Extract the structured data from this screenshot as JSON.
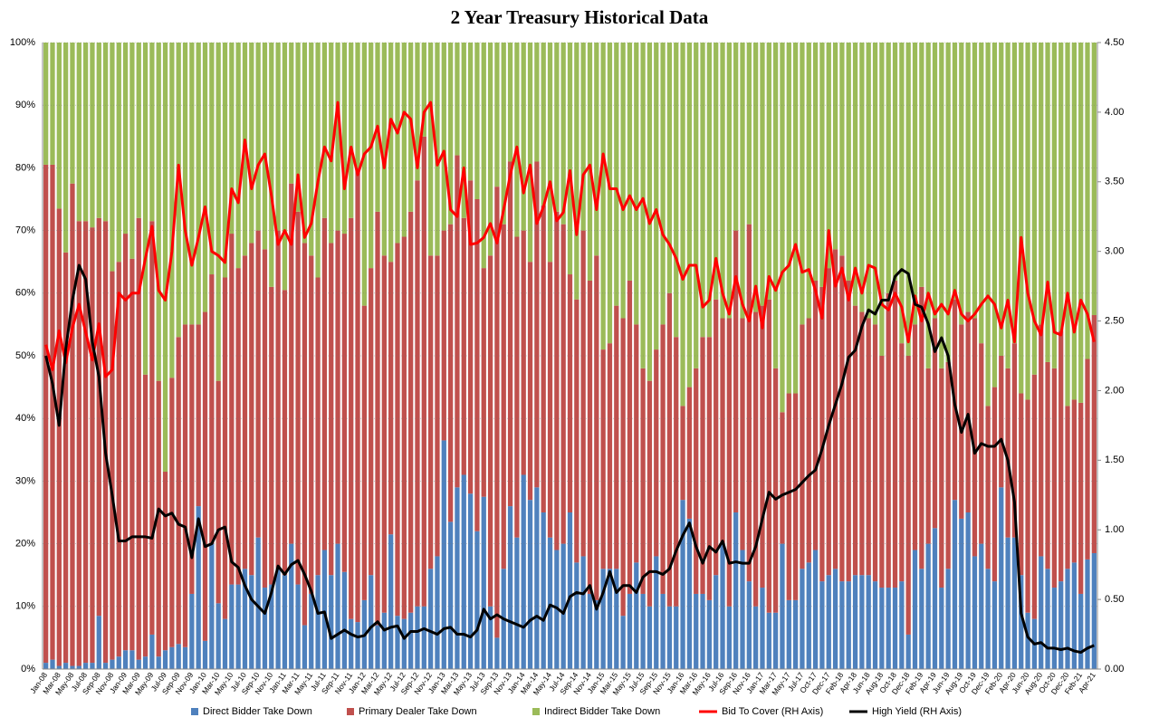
{
  "chart_data": {
    "type": "bar",
    "stacked": true,
    "title": "2 Year Treasury  Historical Data",
    "categories": [
      "Jan-08",
      null,
      "Mar-08",
      null,
      "May-08",
      null,
      "Jul-08",
      null,
      "Sep-08",
      null,
      "Nov-08",
      null,
      "Jan-09",
      null,
      "Mar-09",
      null,
      "May-09",
      null,
      "Jul-09",
      null,
      "Sep-09",
      null,
      "Nov-09",
      null,
      "Jan-10",
      null,
      "Mar-10",
      null,
      "May-10",
      null,
      "Jul-10",
      null,
      "Sep-10",
      null,
      "Nov-10",
      null,
      "Jan-11",
      null,
      "Mar-11",
      null,
      "May-11",
      null,
      "Jul-11",
      null,
      "Sep-11",
      null,
      "Nov-11",
      null,
      "Jan-12",
      null,
      "Mar-12",
      null,
      "May-12",
      null,
      "Jul-12",
      null,
      "Sep-12",
      null,
      "Nov-12",
      null,
      "Jan-13",
      null,
      "Mar-13",
      null,
      "May-13",
      null,
      "Jul-13",
      null,
      "Sep-13",
      null,
      "Nov-13",
      null,
      "Jan-14",
      null,
      "Mar-14",
      null,
      "May-14",
      null,
      "Jul-14",
      null,
      "Sep-14",
      null,
      "Nov-14",
      null,
      "Jan-15",
      null,
      "Mar-15",
      null,
      "May-15",
      null,
      "Jul-15",
      null,
      "Sep-15",
      null,
      "Nov-15",
      null,
      "Jan-16",
      null,
      "Mar-16",
      null,
      "May-16",
      null,
      "Jul-16",
      null,
      "Sep-16",
      null,
      "Nov-16",
      null,
      "Jan-17",
      null,
      "Mar-17",
      null,
      "May-17",
      null,
      "Jul-17",
      null,
      "Oct-17",
      null,
      "Dec-17",
      null,
      "Feb-18",
      null,
      "Apr-18",
      null,
      "Jun-18",
      null,
      "Aug-18",
      null,
      "Oct-18",
      null,
      "Dec-18",
      null,
      "Feb-19",
      null,
      "Apr-19",
      null,
      "Jun-19",
      null,
      "Aug-19",
      null,
      "Oct-19",
      null,
      "Dec-19",
      null,
      "Feb-20",
      null,
      "Apr-20",
      null,
      "Jun-20",
      null,
      "Aug-20",
      null,
      "Oct-20",
      null,
      "Dec-20",
      null,
      "Feb-21",
      null,
      "Apr-21"
    ],
    "ylim": [
      0,
      100
    ],
    "yticks": [
      {
        "value": 0,
        "label": "0%"
      },
      {
        "value": 10,
        "label": "10%"
      },
      {
        "value": 20,
        "label": "20%"
      },
      {
        "value": 30,
        "label": "30%"
      },
      {
        "value": 40,
        "label": "40%"
      },
      {
        "value": 50,
        "label": "50%"
      },
      {
        "value": 60,
        "label": "60%"
      },
      {
        "value": 70,
        "label": "70%"
      },
      {
        "value": 80,
        "label": "80%"
      },
      {
        "value": 90,
        "label": "90%"
      },
      {
        "value": 100,
        "label": "100%"
      }
    ],
    "y2lim": [
      0,
      4.5
    ],
    "y2ticks": [
      {
        "value": 0,
        "label": "0.00"
      },
      {
        "value": 0.5,
        "label": "0.50"
      },
      {
        "value": 1,
        "label": "1.00"
      },
      {
        "value": 1.5,
        "label": "1.50"
      },
      {
        "value": 2,
        "label": "2.00"
      },
      {
        "value": 2.5,
        "label": "2.50"
      },
      {
        "value": 3,
        "label": "3.00"
      },
      {
        "value": 3.5,
        "label": "3.50"
      },
      {
        "value": 4,
        "label": "4.00"
      },
      {
        "value": 4.5,
        "label": "4.50"
      }
    ],
    "grid": true,
    "legend": "bottom",
    "series": [
      {
        "name": "Direct Bidder Take Down",
        "color": "#4f81bd",
        "values": [
          1,
          1.5,
          0.5,
          1,
          0.5,
          0.5,
          1,
          1,
          8.5,
          1,
          1.5,
          2,
          3,
          3,
          1.5,
          2,
          5.5,
          2,
          3,
          3.5,
          4,
          3.5,
          12,
          26,
          4.5,
          20,
          10.5,
          8,
          13.5,
          13.5,
          16,
          15,
          21,
          13,
          13.5,
          16,
          15,
          20,
          13.5,
          7,
          12,
          15,
          19,
          15,
          20,
          15.5,
          8,
          7.5,
          11,
          15,
          7,
          9,
          21.5,
          8.5,
          8,
          9,
          10,
          10,
          16,
          18,
          36.5,
          23.5,
          29,
          31,
          28,
          22,
          27.5,
          10,
          5,
          16,
          26,
          21,
          31,
          27,
          29,
          25,
          21,
          19,
          20,
          25,
          17,
          18,
          12,
          11,
          16,
          16,
          16,
          8.5,
          12,
          17,
          12,
          10,
          18,
          12,
          10,
          10,
          27,
          24,
          12,
          12,
          11,
          15,
          20,
          10,
          25,
          19,
          14,
          10,
          13,
          9,
          9,
          20,
          11,
          11,
          16,
          17,
          19,
          14,
          15,
          16,
          14,
          14,
          15,
          15,
          15,
          14,
          13,
          13,
          13,
          14,
          5.5,
          19,
          16,
          20,
          22.5,
          13,
          16,
          27,
          24,
          25,
          18,
          20,
          16,
          14,
          29,
          21,
          21,
          15,
          9,
          8,
          18,
          16,
          13,
          14,
          16,
          17,
          12,
          17.5,
          18.5
        ]
      },
      {
        "name": "Primary Dealer Take Down",
        "color": "#c0504d",
        "values": [
          79.5,
          79,
          73,
          65.5,
          77,
          71,
          70.5,
          69.5,
          63.5,
          70.5,
          62,
          63,
          66.5,
          62.5,
          70.5,
          45,
          66,
          44,
          28.5,
          43,
          49,
          51.5,
          43,
          29,
          52.5,
          43,
          35.5,
          54.5,
          56,
          50.5,
          50,
          53,
          49,
          54,
          47.5,
          54,
          45.5,
          57.5,
          59.5,
          61,
          54,
          47.5,
          53,
          53,
          50,
          54,
          64,
          72.5,
          47,
          49,
          66,
          57,
          43.5,
          59.5,
          61,
          64,
          68,
          75,
          50,
          48,
          33.5,
          47.5,
          53,
          41,
          50,
          53,
          36.5,
          56,
          72,
          55,
          55,
          48,
          39,
          38,
          52,
          49,
          44,
          54,
          51,
          38,
          42,
          52,
          50,
          55,
          35,
          36,
          42,
          47.5,
          50,
          38,
          36,
          36,
          33,
          43,
          50,
          43,
          15,
          21,
          36,
          41,
          42,
          44,
          36,
          46,
          45,
          37,
          57,
          47,
          45,
          50,
          39,
          21,
          33,
          33,
          39,
          39,
          43,
          47,
          49,
          51,
          52,
          48,
          43,
          42,
          41,
          41,
          37,
          47,
          49,
          38,
          44.5,
          36,
          45,
          28,
          33.5,
          35,
          33,
          32,
          31,
          32,
          38,
          32,
          26,
          31,
          21,
          27,
          31,
          29,
          34,
          39,
          37,
          33,
          35,
          40,
          26,
          26,
          30.5,
          32,
          38
        ]
      },
      {
        "name": "Indirect Bidder Take Down",
        "color": "#9bbb59",
        "values": [
          19.5,
          19.5,
          26.5,
          33.5,
          22.5,
          28.5,
          28.5,
          29.5,
          28,
          28.5,
          36.5,
          35,
          30.5,
          34.5,
          28,
          53,
          28.5,
          54,
          68.5,
          53.5,
          47,
          45,
          45,
          45,
          43,
          37,
          54,
          37.5,
          30.5,
          36,
          34,
          32,
          30,
          33,
          39,
          30,
          39.5,
          22.5,
          27,
          32,
          34,
          37.5,
          28,
          32,
          30,
          30.5,
          28,
          20,
          42,
          36,
          27,
          34,
          35,
          32,
          31,
          27,
          22,
          15,
          34,
          34,
          30,
          29,
          18,
          28,
          22,
          25,
          36,
          34,
          23,
          29,
          19,
          31,
          30,
          35,
          19,
          26,
          35,
          27,
          29,
          37,
          41,
          30,
          38,
          34,
          49,
          48,
          42,
          44,
          38,
          45,
          52,
          54,
          49,
          45,
          40,
          47,
          58,
          55,
          52,
          47,
          47,
          41,
          44,
          44,
          30,
          44,
          29,
          43,
          42,
          41,
          52,
          59,
          56,
          56,
          45,
          44,
          38,
          39,
          36,
          33,
          34,
          38,
          42,
          43,
          44,
          45,
          50,
          40,
          38,
          48,
          50,
          45,
          39,
          52,
          44,
          52,
          51,
          41,
          45,
          43,
          44,
          48,
          58,
          55,
          50,
          52,
          48,
          56,
          57,
          53,
          45,
          51,
          52,
          46,
          58,
          57,
          57.5,
          50.5,
          43.5
        ]
      },
      {
        "name": "Bid To Cover (RH Axis)",
        "color": "#ff0000",
        "type": "line",
        "axis": "y2",
        "values": [
          2.33,
          2.15,
          2.43,
          2.2,
          2.45,
          2.62,
          2.42,
          2.22,
          2.48,
          2.1,
          2.15,
          2.7,
          2.65,
          2.7,
          2.7,
          2.95,
          3.18,
          2.72,
          2.65,
          3.0,
          3.62,
          3.15,
          2.9,
          3.1,
          3.32,
          3.0,
          2.97,
          2.92,
          3.45,
          3.35,
          3.8,
          3.45,
          3.62,
          3.7,
          3.4,
          3.05,
          3.15,
          3.05,
          3.55,
          3.1,
          3.2,
          3.5,
          3.75,
          3.65,
          4.07,
          3.45,
          3.75,
          3.55,
          3.7,
          3.75,
          3.9,
          3.6,
          3.95,
          3.85,
          4.0,
          3.95,
          3.6,
          4.0,
          4.07,
          3.62,
          3.72,
          3.3,
          3.25,
          3.6,
          3.05,
          3.06,
          3.1,
          3.2,
          3.06,
          3.3,
          3.55,
          3.75,
          3.42,
          3.62,
          3.2,
          3.32,
          3.5,
          3.22,
          3.28,
          3.58,
          3.12,
          3.55,
          3.62,
          3.3,
          3.7,
          3.45,
          3.45,
          3.3,
          3.4,
          3.3,
          3.38,
          3.2,
          3.3,
          3.12,
          3.05,
          2.95,
          2.8,
          2.9,
          2.9,
          2.6,
          2.65,
          2.95,
          2.7,
          2.55,
          2.82,
          2.62,
          2.5,
          2.75,
          2.45,
          2.82,
          2.72,
          2.85,
          2.9,
          3.05,
          2.85,
          2.87,
          2.72,
          2.52,
          3.15,
          2.75,
          2.88,
          2.65,
          2.88,
          2.7,
          2.9,
          2.88,
          2.62,
          2.58,
          2.7,
          2.6,
          2.35,
          2.68,
          2.5,
          2.7,
          2.55,
          2.62,
          2.55,
          2.72,
          2.55,
          2.5,
          2.55,
          2.62,
          2.68,
          2.62,
          2.45,
          2.65,
          2.35,
          3.1,
          2.7,
          2.5,
          2.4,
          2.78,
          2.42,
          2.4,
          2.7,
          2.42,
          2.65,
          2.55,
          2.35
        ]
      },
      {
        "name": "High Yield (RH Axis)",
        "color": "#000000",
        "type": "line",
        "axis": "y2",
        "values": [
          2.25,
          2.05,
          1.75,
          2.3,
          2.65,
          2.9,
          2.8,
          2.35,
          2.1,
          1.55,
          1.25,
          0.92,
          0.92,
          0.95,
          0.95,
          0.95,
          0.94,
          1.15,
          1.1,
          1.12,
          1.04,
          1.02,
          0.8,
          1.08,
          0.88,
          0.9,
          1.0,
          1.02,
          0.77,
          0.73,
          0.6,
          0.5,
          0.45,
          0.4,
          0.55,
          0.74,
          0.68,
          0.75,
          0.78,
          0.68,
          0.56,
          0.4,
          0.41,
          0.22,
          0.25,
          0.28,
          0.25,
          0.23,
          0.24,
          0.3,
          0.34,
          0.28,
          0.3,
          0.31,
          0.22,
          0.27,
          0.27,
          0.29,
          0.27,
          0.25,
          0.29,
          0.3,
          0.25,
          0.25,
          0.23,
          0.28,
          0.43,
          0.36,
          0.39,
          0.36,
          0.34,
          0.32,
          0.3,
          0.35,
          0.38,
          0.35,
          0.46,
          0.44,
          0.4,
          0.52,
          0.55,
          0.54,
          0.6,
          0.43,
          0.55,
          0.7,
          0.55,
          0.6,
          0.6,
          0.55,
          0.66,
          0.7,
          0.7,
          0.68,
          0.72,
          0.85,
          0.96,
          1.05,
          0.88,
          0.76,
          0.88,
          0.84,
          0.92,
          0.76,
          0.77,
          0.76,
          0.76,
          0.88,
          1.08,
          1.27,
          1.22,
          1.25,
          1.27,
          1.29,
          1.34,
          1.39,
          1.43,
          1.58,
          1.75,
          1.9,
          2.05,
          2.24,
          2.29,
          2.46,
          2.58,
          2.55,
          2.65,
          2.65,
          2.82,
          2.87,
          2.84,
          2.62,
          2.6,
          2.48,
          2.28,
          2.38,
          2.25,
          1.9,
          1.7,
          1.83,
          1.55,
          1.62,
          1.6,
          1.6,
          1.65,
          1.5,
          1.2,
          0.4,
          0.23,
          0.18,
          0.19,
          0.15,
          0.15,
          0.14,
          0.15,
          0.13,
          0.12,
          0.15,
          0.17
        ]
      }
    ]
  }
}
